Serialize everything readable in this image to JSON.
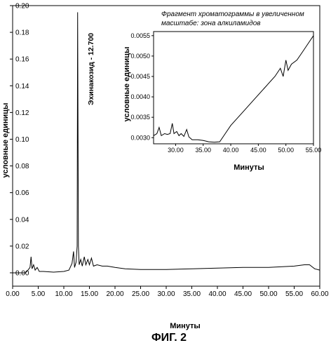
{
  "chart_data": [
    {
      "type": "line",
      "xlabel": "Минуты",
      "ylabel": "условные единицы",
      "xlim": [
        0,
        60
      ],
      "ylim": [
        -0.01,
        0.2
      ],
      "xticks": [
        "0.00",
        "5.00",
        "10.00",
        "15.00",
        "20.00",
        "25.00",
        "30.00",
        "35.00",
        "40.00",
        "45.00",
        "50.00",
        "55.00",
        "60.00"
      ],
      "yticks": [
        "0.00",
        "0.02",
        "0.04",
        "0.06",
        "0.08",
        "0.10",
        "0.12",
        "0.14",
        "0.16",
        "0.18",
        "0.20"
      ],
      "annotation": "Эхинакозид - 12.700",
      "series": [
        {
          "points": [
            [
              0,
              0.0
            ],
            [
              2.5,
              0.0
            ],
            [
              3.0,
              0.002
            ],
            [
              3.4,
              0.004
            ],
            [
              3.6,
              0.012
            ],
            [
              3.8,
              0.003
            ],
            [
              4.1,
              0.006
            ],
            [
              4.4,
              0.002
            ],
            [
              4.8,
              0.004
            ],
            [
              5.2,
              0.001
            ],
            [
              6,
              0.001
            ],
            [
              8,
              0.0005
            ],
            [
              10,
              0.001
            ],
            [
              11,
              0.002
            ],
            [
              11.6,
              0.007
            ],
            [
              11.9,
              0.016
            ],
            [
              12.1,
              0.004
            ],
            [
              12.4,
              0.008
            ],
            [
              12.6,
              0.02
            ],
            [
              12.7,
              0.195
            ],
            [
              12.85,
              0.02
            ],
            [
              13.0,
              0.006
            ],
            [
              13.3,
              0.01
            ],
            [
              13.6,
              0.005
            ],
            [
              14.0,
              0.012
            ],
            [
              14.3,
              0.006
            ],
            [
              14.7,
              0.01
            ],
            [
              15.0,
              0.006
            ],
            [
              15.4,
              0.011
            ],
            [
              15.8,
              0.005
            ],
            [
              16.5,
              0.006
            ],
            [
              17.5,
              0.005
            ],
            [
              18.5,
              0.005
            ],
            [
              20,
              0.004
            ],
            [
              22,
              0.003
            ],
            [
              25,
              0.0025
            ],
            [
              30,
              0.0025
            ],
            [
              35,
              0.003
            ],
            [
              40,
              0.0035
            ],
            [
              45,
              0.004
            ],
            [
              50,
              0.004
            ],
            [
              55,
              0.005
            ],
            [
              57,
              0.006
            ],
            [
              58,
              0.006
            ],
            [
              59,
              0.003
            ],
            [
              60,
              0.002
            ]
          ]
        }
      ]
    },
    {
      "type": "line",
      "title": "Фрагмент хроматограммы в увеличенном масштабе: зона алкиламидов",
      "xlabel": "Минуты",
      "ylabel": "условные единицы",
      "xlim": [
        26,
        55
      ],
      "ylim": [
        0.00285,
        0.0056
      ],
      "xticks": [
        "30.00",
        "35.00",
        "40.00",
        "45.00",
        "50.00",
        "55.00"
      ],
      "yticks": [
        "0.0030",
        "0.0035",
        "0.0040",
        "0.0045",
        "0.0050",
        "0.0055"
      ],
      "series": [
        {
          "points": [
            [
              26,
              0.00305
            ],
            [
              26.6,
              0.0031
            ],
            [
              27,
              0.00325
            ],
            [
              27.4,
              0.00305
            ],
            [
              28,
              0.0031
            ],
            [
              28.5,
              0.00308
            ],
            [
              29,
              0.0031
            ],
            [
              29.4,
              0.00335
            ],
            [
              29.7,
              0.0031
            ],
            [
              30.2,
              0.00315
            ],
            [
              30.6,
              0.00305
            ],
            [
              31,
              0.0031
            ],
            [
              31.5,
              0.00303
            ],
            [
              32,
              0.0032
            ],
            [
              32.4,
              0.00302
            ],
            [
              33,
              0.00295
            ],
            [
              34,
              0.00295
            ],
            [
              35,
              0.00293
            ],
            [
              36,
              0.0029
            ],
            [
              37,
              0.00289
            ],
            [
              38,
              0.0029
            ],
            [
              39,
              0.0031
            ],
            [
              40,
              0.0033
            ],
            [
              42,
              0.0036
            ],
            [
              44,
              0.0039
            ],
            [
              46,
              0.0042
            ],
            [
              48,
              0.0045
            ],
            [
              49,
              0.0047
            ],
            [
              49.5,
              0.0045
            ],
            [
              50,
              0.0049
            ],
            [
              50.4,
              0.00465
            ],
            [
              51,
              0.0048
            ],
            [
              52,
              0.0049
            ],
            [
              53,
              0.0051
            ],
            [
              54,
              0.0053
            ],
            [
              55,
              0.0055
            ]
          ]
        }
      ]
    }
  ],
  "figure_label": "ФИГ. 2"
}
